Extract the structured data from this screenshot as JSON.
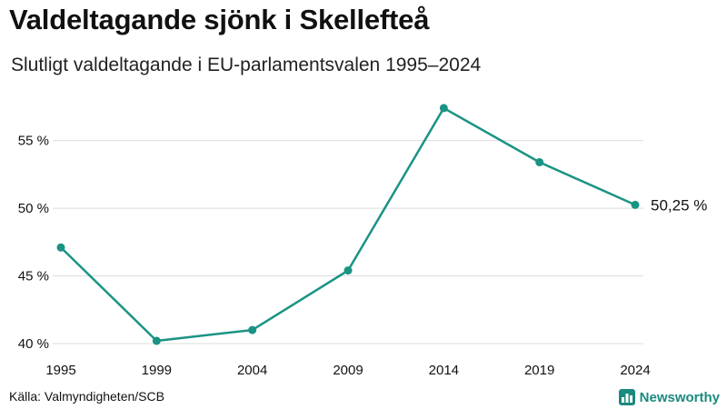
{
  "title": "Valdeltagande sjönk i Skellefteå",
  "subtitle": "Slutligt valdeltagande i EU-parlamentsvalen 1995–2024",
  "source": "Källa: Valmyndigheten/SCB",
  "brand": {
    "name": "Newsworthy",
    "icon": "bar-chart-icon"
  },
  "colors": {
    "line": "#1a9384",
    "grid": "#dcdcdc",
    "text": "#111111",
    "brand": "#1a8a7e"
  },
  "chart_data": {
    "type": "line",
    "title": "Valdeltagande sjönk i Skellefteå",
    "subtitle": "Slutligt valdeltagande i EU-parlamentsvalen 1995–2024",
    "xlabel": "",
    "ylabel": "",
    "categories": [
      "1995",
      "1999",
      "2004",
      "2009",
      "2014",
      "2019",
      "2024"
    ],
    "series": [
      {
        "name": "Valdeltagande",
        "values": [
          47.1,
          40.2,
          41.0,
          45.4,
          57.4,
          53.4,
          50.25
        ]
      }
    ],
    "ylim": [
      40,
      58
    ],
    "yticks": [
      40,
      45,
      50,
      55
    ],
    "ytick_labels": [
      "40 %",
      "45 %",
      "50 %",
      "55 %"
    ],
    "grid": true,
    "end_label": "50,25 %"
  }
}
